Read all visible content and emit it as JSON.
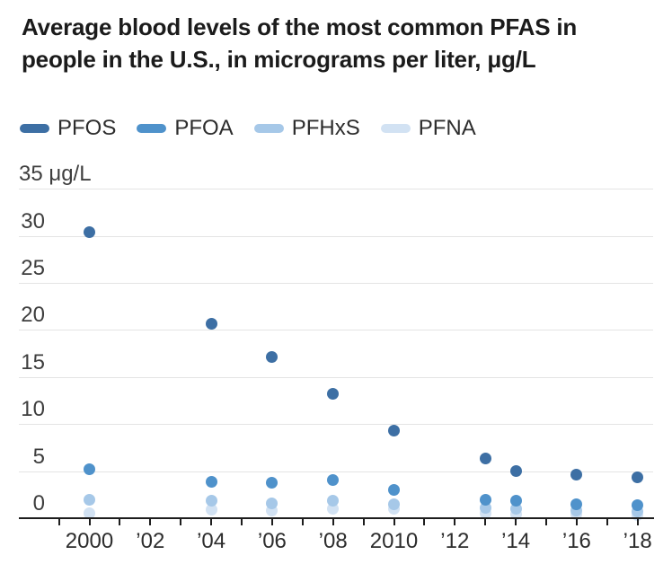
{
  "title": "Average blood levels of the most common PFAS in people in the U.S., in micrograms per liter, μg/L",
  "legend": [
    {
      "label": "PFOS",
      "color": "#3d6fa4"
    },
    {
      "label": "PFOA",
      "color": "#4f92cb"
    },
    {
      "label": "PFHxS",
      "color": "#a6c8e8"
    },
    {
      "label": "PFNA",
      "color": "#d2e2f3"
    }
  ],
  "chart_data": {
    "type": "scatter",
    "title": "Average blood levels of the most common PFAS in people in the U.S., in micrograms per liter, μg/L",
    "x": [
      2000,
      2004,
      2006,
      2008,
      2010,
      2013,
      2014,
      2016,
      2018
    ],
    "series": [
      {
        "name": "PFOS",
        "color": "#3d6fa4",
        "values": [
          30.4,
          20.7,
          17.1,
          13.2,
          9.3,
          6.3,
          5.0,
          4.6,
          4.3
        ]
      },
      {
        "name": "PFOA",
        "color": "#4f92cb",
        "values": [
          5.2,
          3.9,
          3.8,
          4.1,
          3.0,
          2.0,
          1.9,
          1.5,
          1.4
        ]
      },
      {
        "name": "PFHxS",
        "color": "#a6c8e8",
        "values": [
          2.0,
          1.9,
          1.6,
          1.9,
          1.5,
          1.1,
          1.0,
          0.8,
          0.7
        ]
      },
      {
        "name": "PFNA",
        "color": "#d2e2f3",
        "values": [
          0.5,
          0.9,
          0.8,
          1.0,
          1.0,
          0.5,
          0.4,
          0.4,
          0.3
        ]
      }
    ],
    "ylabel": "μg/L",
    "ylim": [
      0,
      35
    ],
    "yticks": [
      0,
      5,
      10,
      15,
      20,
      25,
      30,
      35
    ],
    "ytick_labels": [
      "0",
      "5",
      "10",
      "15",
      "20",
      "25",
      "30",
      "35 μg/L"
    ],
    "xlim": [
      1999,
      2018.6
    ],
    "xticks_minor_every_year": {
      "start": 1999,
      "end": 2018
    },
    "xtick_labels": [
      {
        "year": 2000,
        "label": "2000"
      },
      {
        "year": 2002,
        "label": "’02"
      },
      {
        "year": 2004,
        "label": "’04"
      },
      {
        "year": 2006,
        "label": "’06"
      },
      {
        "year": 2008,
        "label": "’08"
      },
      {
        "year": 2010,
        "label": "2010"
      },
      {
        "year": 2012,
        "label": "’12"
      },
      {
        "year": 2014,
        "label": "’14"
      },
      {
        "year": 2016,
        "label": "’16"
      },
      {
        "year": 2018,
        "label": "’18"
      }
    ],
    "grid": true,
    "legend_position": "top-left"
  },
  "colors": {
    "gridline": "#e4e4e4",
    "axis": "#1d1d1d",
    "title_text": "#1b1b1b",
    "axis_label_text": "#3e3e3e"
  }
}
